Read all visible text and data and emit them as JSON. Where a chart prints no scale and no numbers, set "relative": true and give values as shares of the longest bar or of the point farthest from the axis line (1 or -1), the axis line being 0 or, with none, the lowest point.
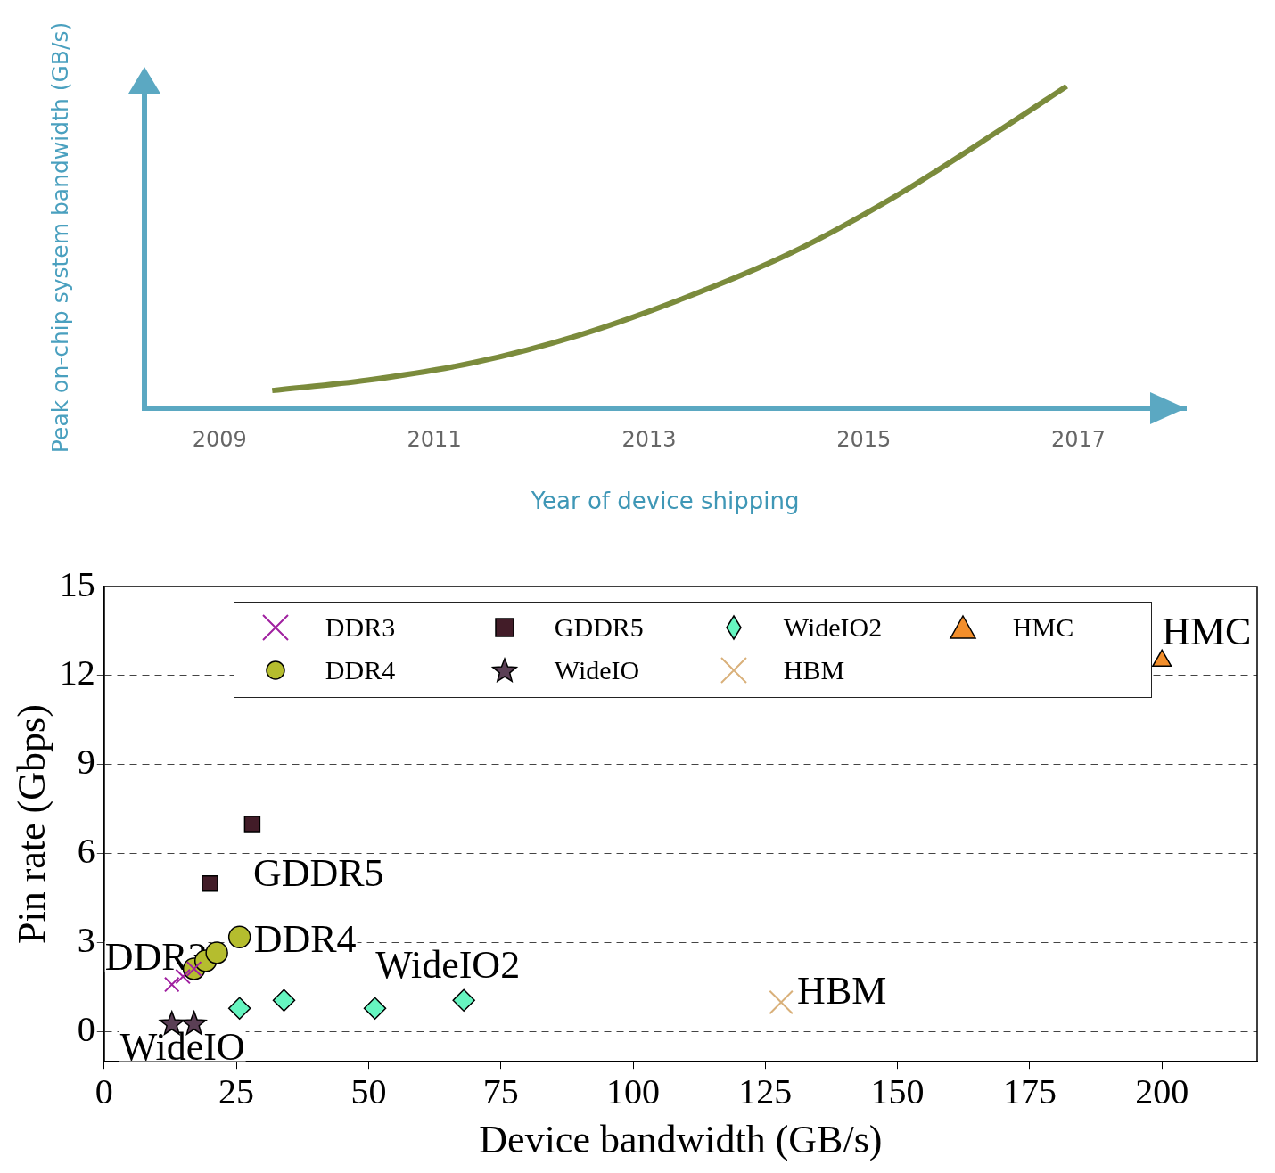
{
  "chart_data": [
    {
      "type": "line",
      "xlabel": "Year of device shipping",
      "ylabel": "Peak on-chip system bandwidth (GB/s)",
      "relative": true,
      "color": "#7b8b3c",
      "marker": "none",
      "x": [
        2009.49,
        2010.38,
        2011.36,
        2012.34,
        2013.32,
        2014.31,
        2015.29,
        2016.27,
        2016.89
      ],
      "values": [
        0.055,
        0.087,
        0.141,
        0.226,
        0.341,
        0.48,
        0.657,
        0.864,
        1
      ],
      "xlim": [
        2008.3,
        2018
      ],
      "xticks": [
        {
          "value": 2009,
          "label": "2009"
        },
        {
          "value": 2011,
          "label": "2011"
        },
        {
          "value": 2013,
          "label": "2013"
        },
        {
          "value": 2015,
          "label": "2015"
        },
        {
          "value": 2017,
          "label": "2017"
        }
      ]
    },
    {
      "type": "scatter",
      "xlabel": "Device bandwidth (GB/s)",
      "ylabel": "Pin rate (Gbps)",
      "legend": "top",
      "grid": "y",
      "series": [
        {
          "name": "DDR3",
          "color": "#a020a0",
          "marker": "cross",
          "x": [
            12.8,
            14.9,
            17.0
          ],
          "values": [
            1.6,
            1.87,
            2.13
          ]
        },
        {
          "name": "DDR4",
          "color": "#b5bd2e",
          "marker": "circle",
          "x": [
            17.0,
            19.2,
            21.3,
            25.6
          ],
          "values": [
            2.13,
            2.4,
            2.67,
            3.2
          ]
        },
        {
          "name": "GDDR5",
          "color": "#421c28",
          "marker": "square",
          "x": [
            20,
            28
          ],
          "values": [
            5,
            7
          ]
        },
        {
          "name": "WideIO",
          "color": "#5a3f55",
          "marker": "star",
          "x": [
            12.8,
            17.0
          ],
          "values": [
            0.27,
            0.27
          ]
        },
        {
          "name": "WideIO2",
          "color": "#66f5c0",
          "marker": "diamond",
          "x": [
            25.6,
            34,
            51.2,
            68
          ],
          "values": [
            0.8,
            1.07,
            0.8,
            1.07
          ]
        },
        {
          "name": "HBM",
          "color": "#d9b07a",
          "marker": "cross",
          "x": [
            128
          ],
          "values": [
            1
          ]
        },
        {
          "name": "HMC",
          "color": "#f28e2b",
          "marker": "triangle",
          "x": [
            200
          ],
          "values": [
            12.5
          ]
        }
      ],
      "xlim": [
        0,
        218
      ],
      "ylim": [
        -1,
        15
      ],
      "xticks": [
        0,
        25,
        50,
        75,
        100,
        125,
        150,
        175,
        200
      ],
      "yticks": [
        0,
        3,
        6,
        9,
        12,
        15
      ]
    }
  ]
}
